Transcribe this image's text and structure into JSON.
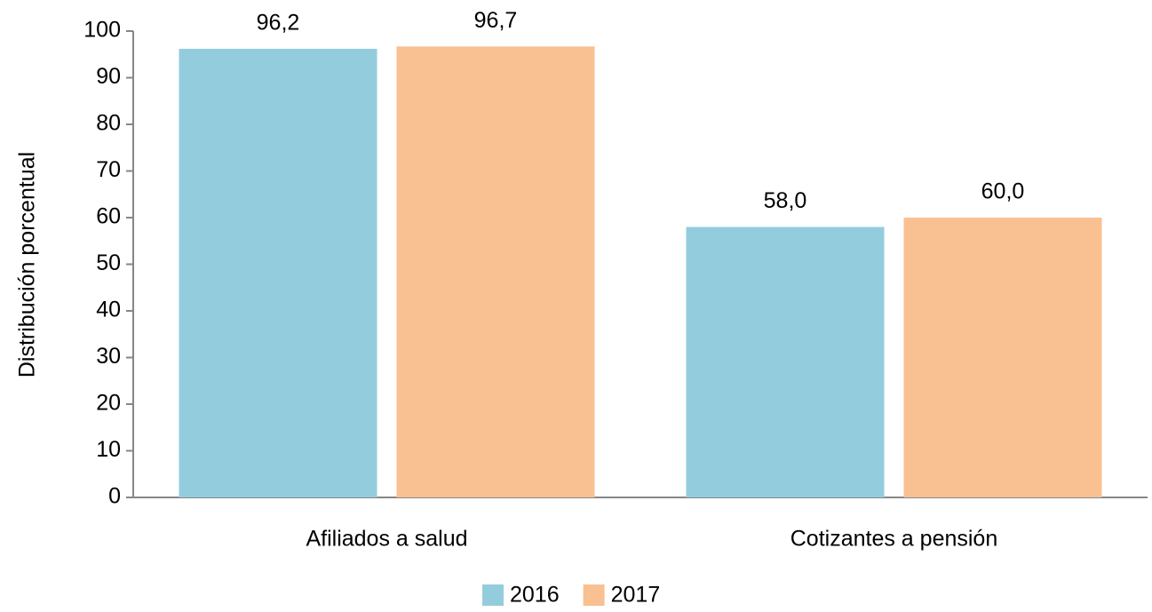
{
  "chart_data": {
    "type": "bar",
    "y_label": "Distribución porcentual",
    "categories": [
      "Afiliados a salud",
      "Cotizantes a pensión"
    ],
    "series": [
      {
        "name": "2016",
        "color": "#93cddd",
        "values": [
          96.2,
          58.0
        ],
        "value_labels": [
          "96,2",
          "58,0"
        ]
      },
      {
        "name": "2017",
        "color": "#f9c092",
        "values": [
          96.7,
          60.0
        ],
        "value_labels": [
          "96,7",
          "60,0"
        ]
      }
    ],
    "ylim": [
      0,
      100
    ],
    "yticks": [
      0,
      10,
      20,
      30,
      40,
      50,
      60,
      70,
      80,
      90,
      100
    ],
    "grid": false,
    "legend": "bottom"
  }
}
